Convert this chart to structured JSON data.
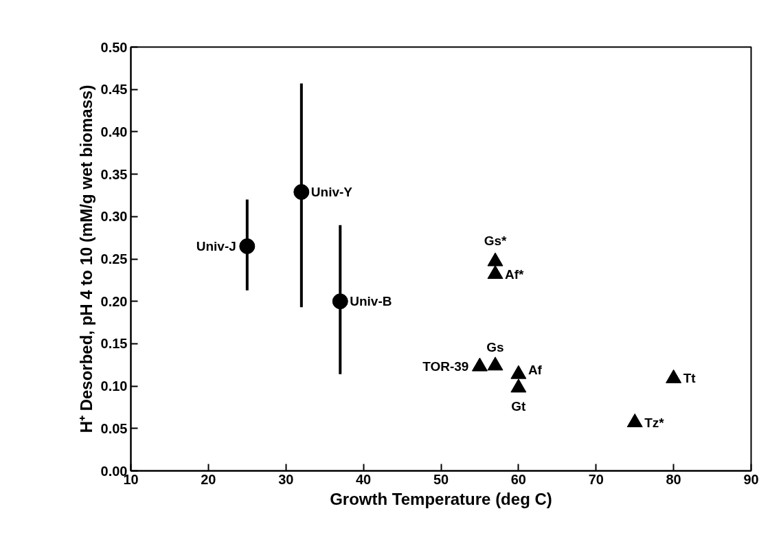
{
  "chart_data": {
    "type": "scatter",
    "xlabel": "Growth Temperature (deg C)",
    "ylabel": "H⁺ Desorbed, pH 4 to 10 (mM/g wet biomass)",
    "xlim": [
      10,
      90
    ],
    "xticks": [
      10,
      20,
      30,
      40,
      50,
      60,
      70,
      80,
      90
    ],
    "ylim": [
      0,
      0.5
    ],
    "yticks": [
      {
        "value": 0,
        "label": "0.00"
      },
      0.05,
      {
        "value": 0.1,
        "label": "0.10"
      },
      0.15,
      {
        "value": 0.2,
        "label": "0.20"
      },
      0.25,
      {
        "value": 0.3,
        "label": "0.30"
      },
      0.35,
      {
        "value": 0.4,
        "label": "0.40"
      },
      0.45,
      {
        "value": 0.5,
        "label": "0.50"
      }
    ],
    "grid": false,
    "series": [
      {
        "color": "#000000",
        "marker": "circle",
        "x": [
          25,
          32,
          37
        ],
        "values": [
          0.265,
          0.329,
          0.2
        ],
        "errors": [
          [
            0.213,
            0.32
          ],
          [
            0.193,
            0.457
          ],
          [
            0.114,
            0.29
          ]
        ]
      },
      {
        "color": "#000000",
        "marker": "triangle",
        "x": [
          55,
          57,
          57,
          57,
          60,
          60,
          75,
          80
        ],
        "values": [
          0.123,
          0.124,
          0.247,
          0.232,
          0.114,
          0.098,
          0.057,
          0.109
        ]
      }
    ],
    "annotations": [
      {
        "text": "Univ-J",
        "x": 25,
        "y": 0.265
      },
      {
        "text": "Univ-Y",
        "x": 32,
        "y": 0.329
      },
      {
        "text": "Univ-B",
        "x": 37,
        "y": 0.2
      },
      {
        "text": "TOR-39",
        "x": 55,
        "y": 0.123
      },
      {
        "text": "Gs",
        "x": 57,
        "y": 0.124
      },
      {
        "text": "Gs*",
        "x": 57,
        "y": 0.247
      },
      {
        "text": "Af*",
        "x": 57,
        "y": 0.232
      },
      {
        "text": "Af",
        "x": 60,
        "y": 0.114
      },
      {
        "text": "Gt",
        "x": 60,
        "y": 0.098
      },
      {
        "text": "Tz*",
        "x": 75,
        "y": 0.057
      },
      {
        "text": "Tt",
        "x": 80,
        "y": 0.109
      }
    ]
  }
}
